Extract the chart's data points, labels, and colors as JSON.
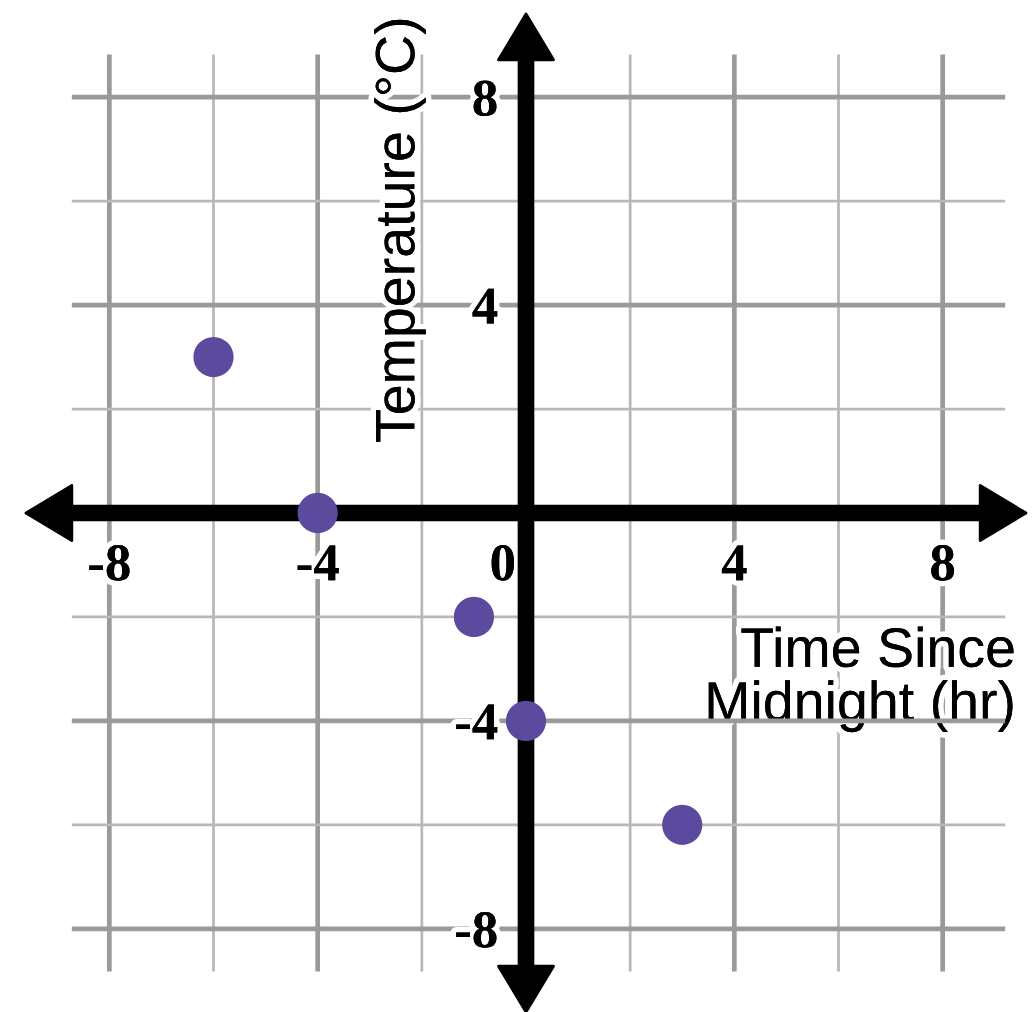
{
  "chart_data": {
    "type": "scatter",
    "xlabel": "Time Since\nMidnight (hr)",
    "ylabel": "Temperature (°C)",
    "x": [
      -6,
      -4,
      -1,
      0,
      3
    ],
    "values": [
      3,
      0,
      -2,
      -4,
      -6
    ],
    "color": "#5b4a9e",
    "marker": "circle",
    "xlim": [
      -9.6,
      9.6
    ],
    "ylim": [
      -9.6,
      9.6
    ],
    "xticks": [
      -8,
      {
        "value": -6,
        "label": null
      },
      -4,
      {
        "value": -2,
        "label": null
      },
      0,
      {
        "value": 2,
        "label": null
      },
      4,
      {
        "value": 6,
        "label": null
      },
      8
    ],
    "yticks": [
      -8,
      {
        "value": -6,
        "label": null
      },
      -4,
      {
        "value": -2,
        "label": null
      },
      {
        "value": 2,
        "label": null
      },
      4,
      {
        "value": 6,
        "label": null
      },
      8
    ],
    "grid": true
  }
}
